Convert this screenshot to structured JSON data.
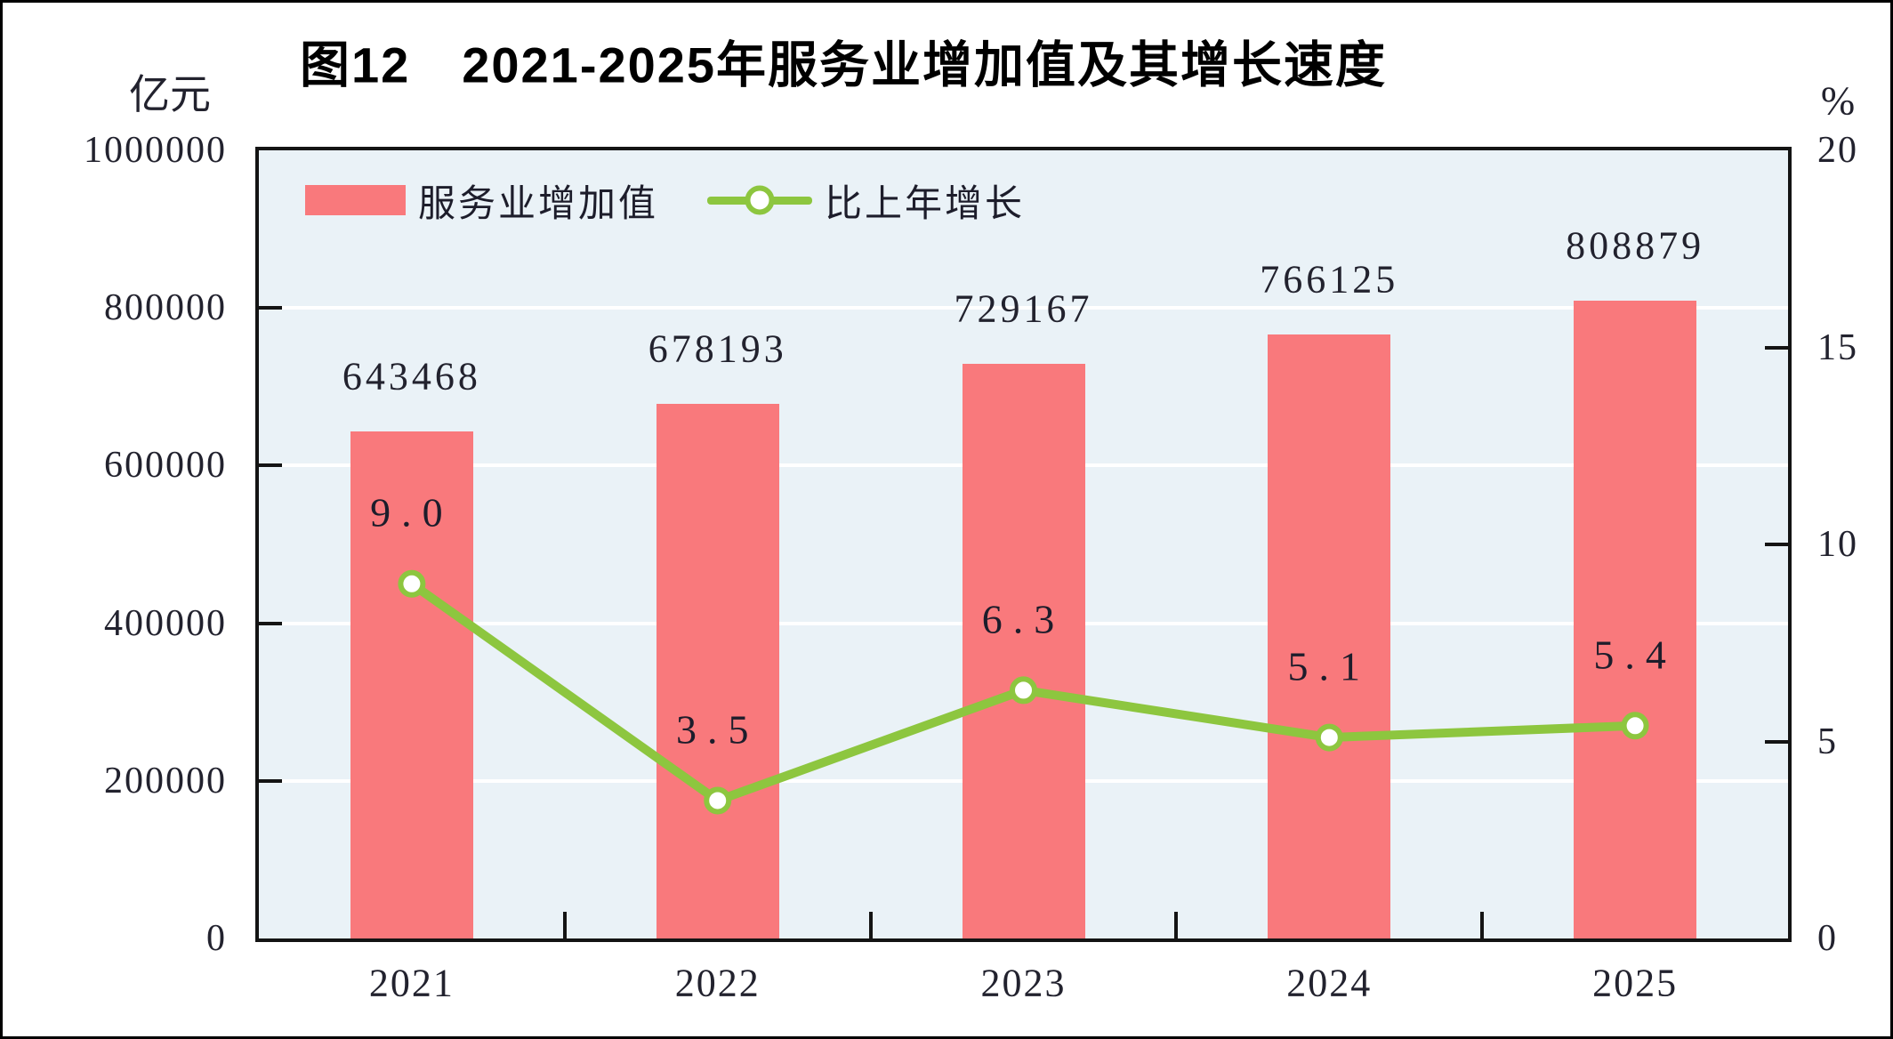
{
  "figure": {
    "title": "图12　2021-2025年服务业增加值及其增长速度",
    "left_axis_unit": "亿元",
    "right_axis_unit": "%"
  },
  "legend": {
    "items": [
      {
        "label": "服务业增加值",
        "marker": "bar-swatch",
        "color": "#F9797C"
      },
      {
        "label": "比上年增长",
        "marker": "line-with-circle",
        "color": "#8DC63F"
      }
    ]
  },
  "chart_data": {
    "type": "combo",
    "categories": [
      "2021",
      "2022",
      "2023",
      "2024",
      "2025"
    ],
    "series": [
      {
        "name": "服务业增加值",
        "type": "bar",
        "axis": "left",
        "unit": "亿元",
        "values": [
          643468,
          678193,
          729167,
          766125,
          808879
        ],
        "labels": [
          "643468",
          "678193",
          "729167",
          "766125",
          "808879"
        ],
        "color": "#F9797C"
      },
      {
        "name": "比上年增长",
        "type": "line",
        "axis": "right",
        "unit": "%",
        "values": [
          9.0,
          3.5,
          6.3,
          5.1,
          5.4
        ],
        "labels": [
          "9.0",
          "3.5",
          "6.3",
          "5.1",
          "5.4"
        ],
        "color": "#8DC63F",
        "marker": "circle-white-fill"
      }
    ],
    "left_axis": {
      "min": 0,
      "max": 1000000,
      "tick_step": 200000,
      "tick_labels": [
        "1000000",
        "800000",
        "600000",
        "400000",
        "200000",
        "0"
      ]
    },
    "right_axis": {
      "min": 0,
      "max": 20,
      "tick_step": 5,
      "tick_labels": [
        "20",
        "15",
        "10",
        "5",
        "0"
      ]
    },
    "grid": {
      "color": "#FFFFFF",
      "at_left_values": [
        800000,
        600000,
        400000,
        200000
      ]
    },
    "plot_background": "#EAF2F7",
    "legend_position": "top-left-inside"
  }
}
